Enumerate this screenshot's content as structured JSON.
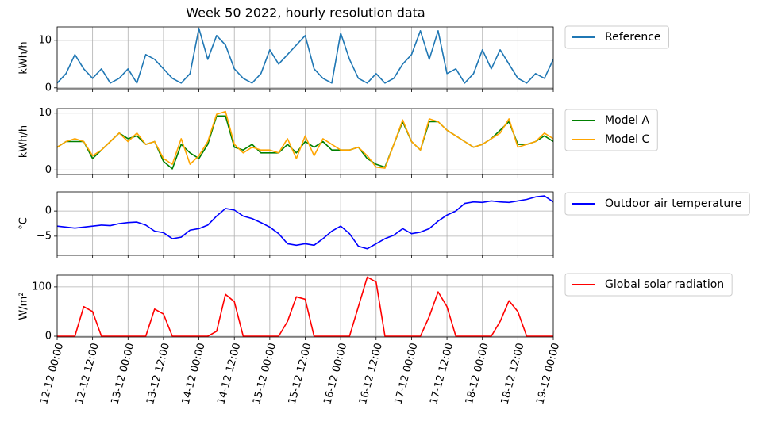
{
  "chart_data": {
    "type": "line",
    "title": "Week 50 2022, hourly resolution data",
    "grid": true,
    "legend": "right",
    "x": [
      "12-12 00:00",
      "12-12 03:00",
      "12-12 06:00",
      "12-12 09:00",
      "12-12 12:00",
      "12-12 15:00",
      "12-12 18:00",
      "12-12 21:00",
      "13-12 00:00",
      "13-12 03:00",
      "13-12 06:00",
      "13-12 09:00",
      "13-12 12:00",
      "13-12 15:00",
      "13-12 18:00",
      "13-12 21:00",
      "14-12 00:00",
      "14-12 03:00",
      "14-12 06:00",
      "14-12 09:00",
      "14-12 12:00",
      "14-12 15:00",
      "14-12 18:00",
      "14-12 21:00",
      "15-12 00:00",
      "15-12 03:00",
      "15-12 06:00",
      "15-12 09:00",
      "15-12 12:00",
      "15-12 15:00",
      "15-12 18:00",
      "15-12 21:00",
      "16-12 00:00",
      "16-12 03:00",
      "16-12 06:00",
      "16-12 09:00",
      "16-12 12:00",
      "16-12 15:00",
      "16-12 18:00",
      "16-12 21:00",
      "17-12 00:00",
      "17-12 03:00",
      "17-12 06:00",
      "17-12 09:00",
      "17-12 12:00",
      "17-12 15:00",
      "17-12 18:00",
      "17-12 21:00",
      "18-12 00:00",
      "18-12 03:00",
      "18-12 06:00",
      "18-12 09:00",
      "18-12 12:00",
      "18-12 15:00",
      "18-12 18:00",
      "18-12 21:00",
      "19-12 00:00"
    ],
    "xlim": [
      "12-12 00:00",
      "19-12 00:00"
    ],
    "xticks": [
      "12-12 00:00",
      "12-12 12:00",
      "13-12 00:00",
      "13-12 12:00",
      "14-12 00:00",
      "14-12 12:00",
      "15-12 00:00",
      "15-12 12:00",
      "16-12 00:00",
      "16-12 12:00",
      "17-12 00:00",
      "17-12 12:00",
      "18-12 00:00",
      "18-12 12:00",
      "19-12 00:00"
    ],
    "panels": [
      {
        "ylabel": "kWh/h",
        "ylim": [
          -0.2,
          12.8
        ],
        "yticks": [
          0,
          10
        ],
        "series": [
          {
            "name": "Reference",
            "color": "#1f77b4",
            "values": [
              1,
              3,
              7,
              4,
              2,
              4,
              1,
              2,
              4,
              1,
              7,
              6,
              4,
              2,
              1,
              3,
              12.5,
              6,
              11,
              9,
              4,
              2,
              1,
              3,
              8,
              5,
              7,
              9,
              11,
              4,
              2,
              1,
              11.5,
              6,
              2,
              1,
              3,
              1,
              2,
              5,
              7,
              12,
              6,
              12,
              3,
              4,
              1,
              3,
              8,
              4,
              8,
              5,
              2,
              1,
              3,
              2,
              6
            ]
          }
        ]
      },
      {
        "ylabel": "kWh/h",
        "ylim": [
          -0.8,
          10.8
        ],
        "yticks": [
          0,
          10
        ],
        "series": [
          {
            "name": "Model A",
            "color": "#008000",
            "values": [
              4,
              5,
              5,
              5,
              2,
              3.5,
              5,
              6.5,
              5.5,
              6,
              4.5,
              5,
              1.5,
              0.2,
              4.5,
              3,
              2,
              4.5,
              9.5,
              9.5,
              4,
              3.5,
              4.5,
              3,
              3,
              3,
              4.5,
              3,
              5,
              4,
              5,
              3.5,
              3.5,
              3.5,
              4,
              2,
              1,
              0.5,
              4.5,
              8.5,
              5,
              3.5,
              8.5,
              8.5,
              7,
              6,
              5,
              4,
              4.5,
              5.5,
              7,
              8.5,
              4.5,
              4.5,
              5,
              6,
              5
            ]
          },
          {
            "name": "Model C",
            "color": "#ffa500",
            "values": [
              4,
              5,
              5.5,
              5,
              2.5,
              3.5,
              5,
              6.5,
              5,
              6.5,
              4.5,
              5,
              2,
              1,
              5.5,
              1,
              2.5,
              5,
              9.8,
              10.3,
              4.5,
              3,
              4,
              3.5,
              3.5,
              3,
              5.5,
              2,
              6,
              2.5,
              5.5,
              4.5,
              3.5,
              3.5,
              4,
              2.5,
              0.5,
              0.3,
              4.5,
              8.8,
              5,
              3.5,
              9,
              8.5,
              7,
              6,
              5,
              4,
              4.5,
              5.5,
              6.5,
              9,
              4,
              4.5,
              5,
              6.5,
              5.5
            ]
          }
        ]
      },
      {
        "ylabel": "°C",
        "ylim": [
          -8.8,
          3.8
        ],
        "yticks": [
          {
            "value": -5,
            "label": "−5"
          },
          0
        ],
        "series": [
          {
            "name": "Outdoor air temperature",
            "color": "#0000ff",
            "values": [
              -3,
              -3.2,
              -3.4,
              -3.2,
              -3,
              -2.8,
              -2.9,
              -2.5,
              -2.3,
              -2.2,
              -2.8,
              -4,
              -4.3,
              -5.5,
              -5.2,
              -3.8,
              -3.5,
              -2.8,
              -1,
              0.5,
              0.2,
              -1,
              -1.5,
              -2.3,
              -3.2,
              -4.5,
              -6.5,
              -6.8,
              -6.5,
              -6.8,
              -5.5,
              -4,
              -3,
              -4.5,
              -7,
              -7.5,
              -6.5,
              -5.5,
              -4.8,
              -3.5,
              -4.5,
              -4.2,
              -3.5,
              -2,
              -0.8,
              0,
              1.5,
              1.8,
              1.7,
              2,
              1.8,
              1.7,
              2,
              2.3,
              2.8,
              3,
              1.8
            ]
          }
        ]
      },
      {
        "ylabel": "W/m²",
        "ylim": [
          -1.6,
          124
        ],
        "yticks": [
          0,
          100
        ],
        "series": [
          {
            "name": "Global solar radiation",
            "color": "#ff0000",
            "values": [
              0,
              0,
              0,
              60,
              50,
              0,
              0,
              0,
              0,
              0,
              0,
              55,
              45,
              0,
              0,
              0,
              0,
              0,
              10,
              85,
              70,
              0,
              0,
              0,
              0,
              0,
              30,
              80,
              75,
              0,
              0,
              0,
              0,
              0,
              60,
              120,
              110,
              0,
              0,
              0,
              0,
              0,
              40,
              90,
              60,
              0,
              0,
              0,
              0,
              0,
              30,
              72,
              50,
              0,
              0,
              0,
              0
            ]
          }
        ]
      }
    ]
  }
}
